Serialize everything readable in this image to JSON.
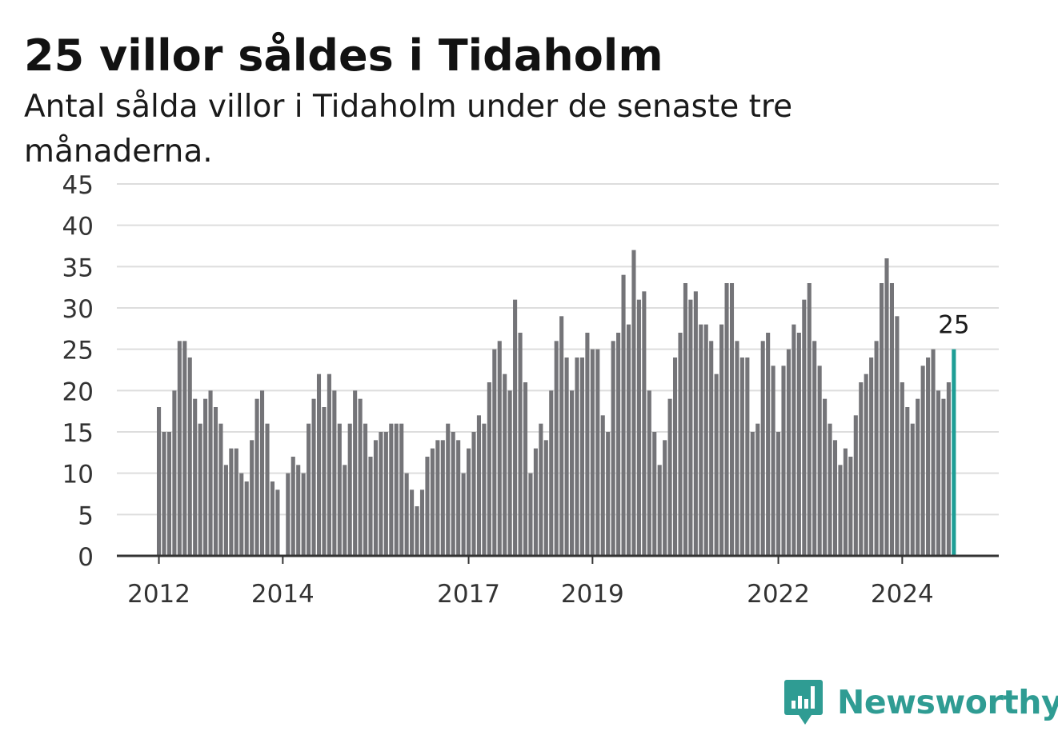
{
  "title": "25 villor såldes i Tidaholm",
  "subtitle": "Antal sålda villor i Tidaholm under de senaste tre månaderna.",
  "brand": {
    "name": "Newsworthy",
    "icon": "newsworthy-logo-icon",
    "color": "#2f9c93"
  },
  "colors": {
    "bar": "#747478",
    "highlight": "#1e9e96",
    "grid": "#dddddd",
    "axis": "#333333"
  },
  "chart_data": {
    "type": "bar",
    "title": "25 villor såldes i Tidaholm",
    "subtitle": "Antal sålda villor i Tidaholm under de senaste tre månaderna.",
    "xlabel": "",
    "ylabel": "",
    "ylim": [
      0,
      45
    ],
    "yticks": [
      0,
      5,
      10,
      15,
      20,
      25,
      30,
      35,
      40,
      45
    ],
    "xtick_labels": [
      "2012",
      "2014",
      "2017",
      "2019",
      "2022",
      "2024"
    ],
    "x_start": "2012-01",
    "x_end": "2024-09",
    "grid": true,
    "highlight_label": "25",
    "values": [
      18,
      15,
      15,
      20,
      26,
      26,
      24,
      19,
      16,
      19,
      20,
      18,
      16,
      11,
      13,
      13,
      10,
      9,
      14,
      19,
      20,
      16,
      9,
      8,
      0,
      10,
      12,
      11,
      10,
      16,
      19,
      22,
      18,
      22,
      20,
      16,
      11,
      16,
      20,
      19,
      16,
      12,
      14,
      15,
      15,
      16,
      16,
      16,
      10,
      8,
      6,
      8,
      12,
      13,
      14,
      14,
      16,
      15,
      14,
      10,
      13,
      15,
      17,
      16,
      21,
      25,
      26,
      22,
      20,
      31,
      27,
      21,
      10,
      13,
      16,
      14,
      20,
      26,
      29,
      24,
      20,
      24,
      24,
      27,
      25,
      25,
      17,
      15,
      26,
      27,
      34,
      28,
      37,
      31,
      32,
      20,
      15,
      11,
      14,
      19,
      24,
      27,
      33,
      31,
      32,
      28,
      28,
      26,
      22,
      28,
      33,
      33,
      26,
      24,
      24,
      15,
      16,
      26,
      27,
      23,
      15,
      23,
      25,
      28,
      27,
      31,
      33,
      26,
      23,
      19,
      16,
      14,
      11,
      13,
      12,
      17,
      21,
      22,
      24,
      26,
      33,
      36,
      33,
      29,
      21,
      18,
      16,
      19,
      23,
      24,
      25,
      20,
      19,
      21,
      25
    ]
  }
}
